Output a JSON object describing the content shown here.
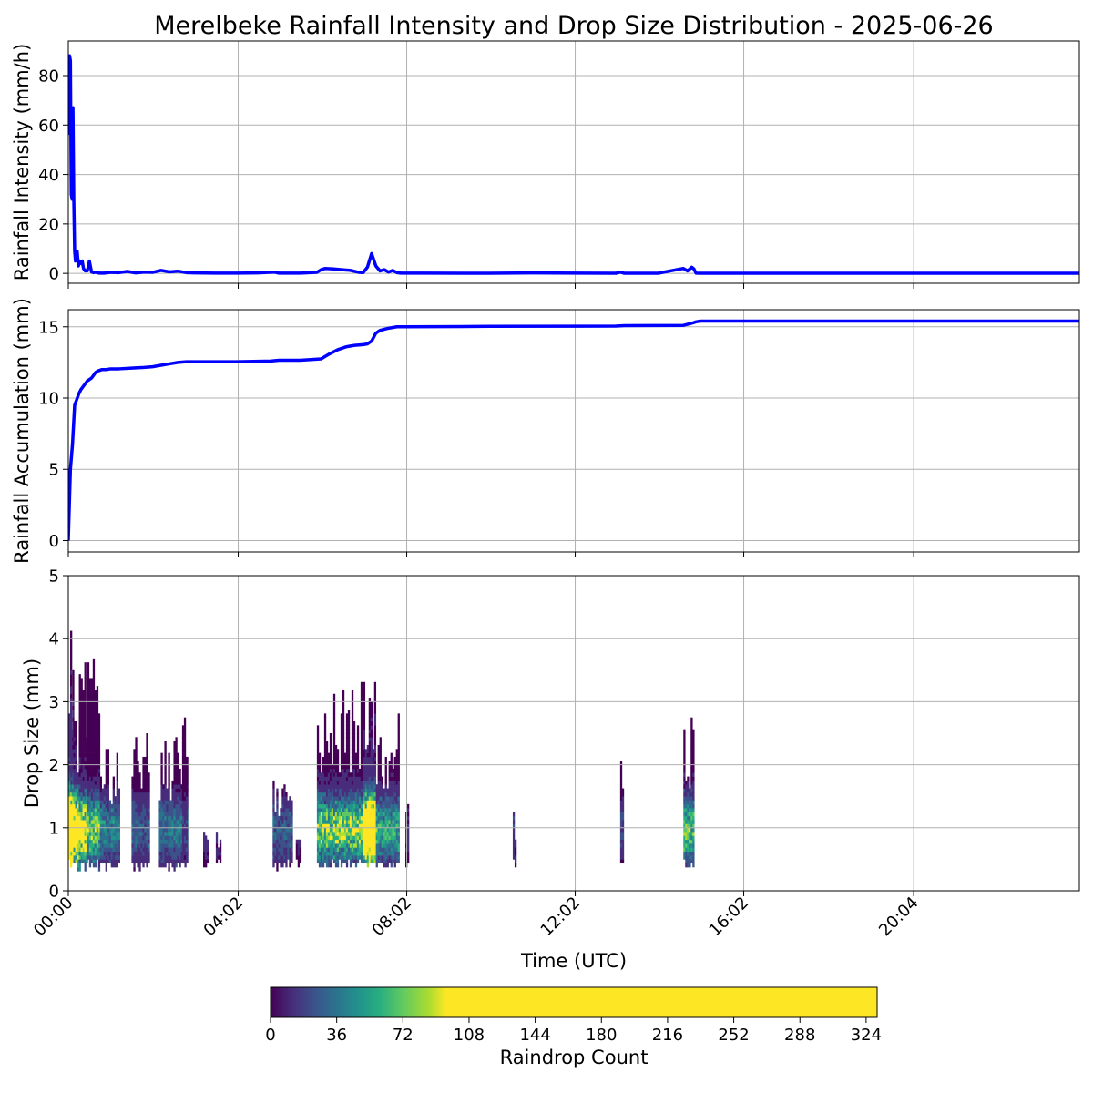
{
  "title": "Merelbeke Rainfall Intensity and Drop Size Distribution - 2025-06-26",
  "x_axis": {
    "label": "Time (UTC)",
    "range_hours": [
      0,
      24
    ],
    "ticks": [
      {
        "hour": 0,
        "label": "00:00"
      },
      {
        "hour": 4.0333,
        "label": "04:02"
      },
      {
        "hour": 8.0333,
        "label": "08:02"
      },
      {
        "hour": 12.0333,
        "label": "12:02"
      },
      {
        "hour": 16.0333,
        "label": "16:02"
      },
      {
        "hour": 20.0667,
        "label": "20:04"
      }
    ]
  },
  "chart_data": [
    {
      "type": "line",
      "ylabel": "Rainfall Intensity (mm/h)",
      "ylim": [
        -4,
        94
      ],
      "yticks": [
        0,
        20,
        40,
        60,
        80
      ],
      "grid": true,
      "color": "#0000ff",
      "x_hours": [
        0,
        0.03,
        0.05,
        0.07,
        0.09,
        0.11,
        0.13,
        0.15,
        0.17,
        0.19,
        0.21,
        0.24,
        0.27,
        0.3,
        0.33,
        0.36,
        0.4,
        0.45,
        0.5,
        0.55,
        0.6,
        0.65,
        0.7,
        0.75,
        0.85,
        1.0,
        1.2,
        1.4,
        1.6,
        1.8,
        2.0,
        2.2,
        2.4,
        2.6,
        2.8,
        3.0,
        3.5,
        4.0,
        4.5,
        4.9,
        5.0,
        5.5,
        5.9,
        6.0,
        6.1,
        6.3,
        6.5,
        6.7,
        6.9,
        7.0,
        7.1,
        7.2,
        7.3,
        7.4,
        7.5,
        7.6,
        7.7,
        7.8,
        7.9,
        8.5,
        10.0,
        11.0,
        13.0,
        13.1,
        13.2,
        14.0,
        14.6,
        14.7,
        14.8,
        14.85,
        14.9,
        15.0,
        16.0,
        20.0,
        24.0
      ],
      "y": [
        56,
        88,
        86,
        32,
        30,
        67,
        30,
        9,
        5,
        8,
        9,
        3,
        5,
        4,
        5,
        2,
        1,
        1,
        5,
        0.6,
        0.3,
        0.5,
        0.2,
        0.1,
        0.1,
        0.4,
        0.3,
        0.8,
        0.2,
        0.5,
        0.4,
        1.2,
        0.6,
        0.9,
        0.3,
        0.2,
        0.1,
        0.1,
        0.2,
        0.5,
        0.1,
        0.1,
        0.4,
        1.5,
        2,
        1.8,
        1.5,
        1.2,
        0.4,
        0.3,
        2.5,
        8,
        3,
        1,
        1.5,
        0.5,
        1.2,
        0.3,
        0.1,
        0.1,
        0.05,
        0.2,
        0.05,
        0.5,
        0.05,
        0.05,
        2,
        1,
        2.5,
        1.8,
        0.1,
        0.05,
        0.05,
        0.05,
        0.05
      ]
    },
    {
      "type": "line",
      "ylabel": "Rainfall Accumulation (mm)",
      "ylim": [
        -0.8,
        16.2
      ],
      "yticks": [
        0,
        5,
        10,
        15
      ],
      "grid": true,
      "color": "#0000ff",
      "x_hours": [
        0,
        0.05,
        0.1,
        0.15,
        0.2,
        0.25,
        0.3,
        0.35,
        0.4,
        0.45,
        0.5,
        0.55,
        0.6,
        0.65,
        0.7,
        0.8,
        0.9,
        1.0,
        1.2,
        1.5,
        1.8,
        2.0,
        2.2,
        2.4,
        2.6,
        2.8,
        3.0,
        4.0,
        4.8,
        5.0,
        5.5,
        6.0,
        6.2,
        6.4,
        6.6,
        6.8,
        7.0,
        7.1,
        7.2,
        7.3,
        7.4,
        7.6,
        7.8,
        8.0,
        10.0,
        13.0,
        13.2,
        14.6,
        14.8,
        14.9,
        15.0,
        16.0,
        20.0,
        24.0
      ],
      "y": [
        0,
        5,
        6.8,
        9.5,
        9.9,
        10.3,
        10.6,
        10.8,
        11.0,
        11.2,
        11.3,
        11.4,
        11.6,
        11.8,
        11.9,
        12.0,
        12.0,
        12.05,
        12.05,
        12.1,
        12.15,
        12.2,
        12.3,
        12.4,
        12.5,
        12.55,
        12.55,
        12.55,
        12.6,
        12.65,
        12.65,
        12.75,
        13.1,
        13.4,
        13.6,
        13.7,
        13.75,
        13.8,
        14.0,
        14.55,
        14.75,
        14.9,
        15.0,
        15.0,
        15.03,
        15.05,
        15.08,
        15.1,
        15.25,
        15.35,
        15.4,
        15.4,
        15.4,
        15.4
      ]
    },
    {
      "type": "heatmap",
      "ylabel": "Drop Size (mm)",
      "ylim": [
        0,
        5
      ],
      "yticks": [
        0,
        1,
        2,
        3,
        4,
        5
      ],
      "grid": true,
      "colorbar": {
        "label": "Raindrop Count",
        "range": [
          0,
          330
        ],
        "ticks": [
          0,
          36,
          72,
          108,
          144,
          180,
          216,
          252,
          288,
          324
        ],
        "saturate_at": 95
      },
      "colors": [
        "#440154",
        "#472d7b",
        "#3b528b",
        "#2c728e",
        "#21918c",
        "#28ae80",
        "#5ec962",
        "#addc30",
        "#fde725"
      ],
      "events": [
        {
          "start_h": 0.0,
          "end_h": 0.05,
          "top_mm": 5.0,
          "peak": 330
        },
        {
          "start_h": 0.05,
          "end_h": 0.12,
          "top_mm": 4.3,
          "peak": 260
        },
        {
          "start_h": 0.12,
          "end_h": 0.25,
          "top_mm": 3.0,
          "peak": 160
        },
        {
          "start_h": 0.25,
          "end_h": 0.45,
          "top_mm": 3.7,
          "peak": 120
        },
        {
          "start_h": 0.45,
          "end_h": 0.75,
          "top_mm": 3.7,
          "peak": 80
        },
        {
          "start_h": 0.75,
          "end_h": 1.2,
          "top_mm": 2.4,
          "peak": 45
        },
        {
          "start_h": 1.5,
          "end_h": 1.9,
          "top_mm": 2.7,
          "peak": 30
        },
        {
          "start_h": 2.15,
          "end_h": 2.8,
          "top_mm": 2.4,
          "peak": 40
        },
        {
          "start_h": 2.7,
          "end_h": 2.8,
          "top_mm": 3.3,
          "peak": 20
        },
        {
          "start_h": 3.2,
          "end_h": 3.3,
          "top_mm": 1.4,
          "peak": 15
        },
        {
          "start_h": 3.5,
          "end_h": 3.6,
          "top_mm": 0.95,
          "peak": 10
        },
        {
          "start_h": 4.85,
          "end_h": 5.3,
          "top_mm": 1.8,
          "peak": 30
        },
        {
          "start_h": 5.4,
          "end_h": 5.5,
          "top_mm": 0.95,
          "peak": 10
        },
        {
          "start_h": 5.9,
          "end_h": 7.0,
          "top_mm": 3.3,
          "peak": 85
        },
        {
          "start_h": 7.0,
          "end_h": 7.3,
          "top_mm": 3.3,
          "peak": 200
        },
        {
          "start_h": 7.3,
          "end_h": 7.85,
          "top_mm": 2.8,
          "peak": 60
        },
        {
          "start_h": 8.0,
          "end_h": 8.05,
          "top_mm": 1.35,
          "peak": 10
        },
        {
          "start_h": 10.55,
          "end_h": 10.62,
          "top_mm": 1.4,
          "peak": 15
        },
        {
          "start_h": 13.1,
          "end_h": 13.18,
          "top_mm": 2.2,
          "peak": 20
        },
        {
          "start_h": 14.6,
          "end_h": 14.82,
          "top_mm": 2.8,
          "peak": 70
        }
      ]
    }
  ]
}
